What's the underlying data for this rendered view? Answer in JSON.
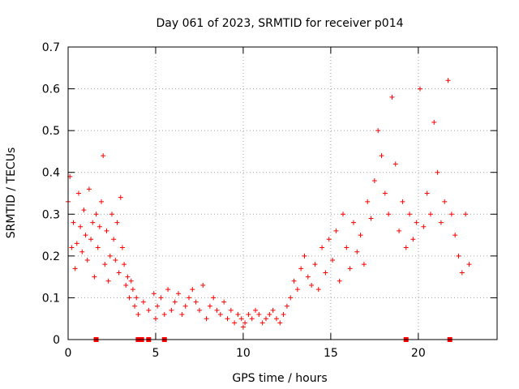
{
  "chart_data": {
    "type": "scatter",
    "title": "Day 061 of 2023, SRMTID for receiver p014",
    "xlabel": "GPS time / hours",
    "ylabel": "SRMTID / TECUs",
    "xlim": [
      0,
      24.5
    ],
    "ylim": [
      0,
      0.7
    ],
    "xticks": [
      0,
      5,
      10,
      15,
      20
    ],
    "xtick_labels": [
      "0",
      "5",
      "10",
      "15",
      "20"
    ],
    "yticks": [
      0,
      0.1,
      0.2,
      0.3,
      0.4,
      0.5,
      0.6,
      0.7
    ],
    "ytick_labels": [
      "0",
      "0.1",
      "0.2",
      "0.3",
      "0.4",
      "0.5",
      "0.6",
      "0.7"
    ],
    "grid": true,
    "marker": "plus",
    "color": "#ff0000",
    "series": [
      {
        "name": "SRMTID",
        "x": [
          0.0,
          0.1,
          0.2,
          0.3,
          0.4,
          0.5,
          0.6,
          0.7,
          0.8,
          0.9,
          1.0,
          1.1,
          1.2,
          1.3,
          1.4,
          1.5,
          1.6,
          1.7,
          1.8,
          1.9,
          2.0,
          2.1,
          2.2,
          2.3,
          2.4,
          2.5,
          2.6,
          2.7,
          2.8,
          2.9,
          3.0,
          3.1,
          3.2,
          3.3,
          3.4,
          3.5,
          3.6,
          3.7,
          3.8,
          3.9,
          4.0,
          4.3,
          4.6,
          4.9,
          5.0,
          5.1,
          5.3,
          5.5,
          5.7,
          5.9,
          6.1,
          6.3,
          6.5,
          6.7,
          6.9,
          7.1,
          7.3,
          7.5,
          7.7,
          7.9,
          8.1,
          8.3,
          8.5,
          8.7,
          8.9,
          9.1,
          9.3,
          9.5,
          9.7,
          9.9,
          10.0,
          10.1,
          10.3,
          10.5,
          10.7,
          10.9,
          11.1,
          11.3,
          11.5,
          11.7,
          11.9,
          12.1,
          12.3,
          12.5,
          12.7,
          12.9,
          13.1,
          13.3,
          13.5,
          13.7,
          13.9,
          14.1,
          14.3,
          14.5,
          14.7,
          14.9,
          15.1,
          15.3,
          15.5,
          15.7,
          15.9,
          16.1,
          16.3,
          16.5,
          16.7,
          16.9,
          17.1,
          17.3,
          17.5,
          17.7,
          17.9,
          18.1,
          18.3,
          18.5,
          18.7,
          18.9,
          19.1,
          19.3,
          19.5,
          19.7,
          19.9,
          20.1,
          20.3,
          20.5,
          20.7,
          20.9,
          21.1,
          21.3,
          21.5,
          21.7,
          21.9,
          22.1,
          22.3,
          22.5,
          22.7,
          22.9
        ],
        "y": [
          0.33,
          0.39,
          0.22,
          0.28,
          0.17,
          0.23,
          0.35,
          0.27,
          0.21,
          0.31,
          0.25,
          0.19,
          0.36,
          0.24,
          0.28,
          0.15,
          0.3,
          0.22,
          0.27,
          0.33,
          0.44,
          0.18,
          0.26,
          0.14,
          0.2,
          0.3,
          0.24,
          0.19,
          0.28,
          0.16,
          0.34,
          0.22,
          0.18,
          0.13,
          0.15,
          0.1,
          0.14,
          0.12,
          0.08,
          0.1,
          0.06,
          0.09,
          0.07,
          0.11,
          0.05,
          0.08,
          0.1,
          0.06,
          0.12,
          0.07,
          0.09,
          0.11,
          0.06,
          0.08,
          0.1,
          0.12,
          0.09,
          0.07,
          0.13,
          0.05,
          0.08,
          0.1,
          0.07,
          0.06,
          0.09,
          0.05,
          0.07,
          0.04,
          0.06,
          0.05,
          0.03,
          0.04,
          0.06,
          0.05,
          0.07,
          0.06,
          0.04,
          0.05,
          0.06,
          0.07,
          0.05,
          0.04,
          0.06,
          0.08,
          0.1,
          0.14,
          0.12,
          0.17,
          0.2,
          0.15,
          0.13,
          0.18,
          0.12,
          0.22,
          0.16,
          0.24,
          0.19,
          0.26,
          0.14,
          0.3,
          0.22,
          0.17,
          0.28,
          0.21,
          0.25,
          0.18,
          0.33,
          0.29,
          0.38,
          0.5,
          0.44,
          0.35,
          0.3,
          0.58,
          0.42,
          0.26,
          0.33,
          0.22,
          0.3,
          0.24,
          0.28,
          0.6,
          0.27,
          0.35,
          0.3,
          0.52,
          0.4,
          0.28,
          0.33,
          0.62,
          0.3,
          0.25,
          0.2,
          0.16,
          0.3,
          0.18
        ],
        "zeros_x": [
          1.6,
          4.0,
          4.2,
          4.6,
          5.5,
          19.3,
          21.8
        ]
      }
    ]
  }
}
